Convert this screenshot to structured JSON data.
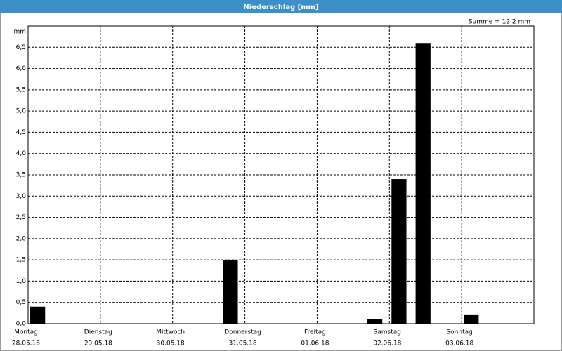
{
  "chart_data": {
    "type": "bar",
    "title": "Niederschlag [mm]",
    "y_label": "mm",
    "annotation": "Summe = 12,2 mm",
    "days": [
      {
        "name": "Montag",
        "date": "28.05.18"
      },
      {
        "name": "Dienstag",
        "date": "29.05.18"
      },
      {
        "name": "Mittwoch",
        "date": "30.05.18"
      },
      {
        "name": "Donnerstag",
        "date": "31.05.18"
      },
      {
        "name": "Freitag",
        "date": "01.06.18"
      },
      {
        "name": "Samstag",
        "date": "02.06.18"
      },
      {
        "name": "Sonntag",
        "date": "03.06.18"
      }
    ],
    "values": [
      0.4,
      0,
      0,
      0,
      0,
      0,
      0,
      0,
      1.5,
      0,
      0,
      0,
      0,
      0,
      0.1,
      3.4,
      6.6,
      0,
      0.2,
      0,
      0
    ],
    "color": "#000000",
    "ylim": [
      0,
      7
    ],
    "yticks": [
      {
        "value": 0,
        "label": "0,0"
      },
      {
        "value": 0.5,
        "label": "0,5"
      },
      {
        "value": 1,
        "label": "1,0"
      },
      {
        "value": 1.5,
        "label": "1,5"
      },
      {
        "value": 2,
        "label": "2,0"
      },
      {
        "value": 2.5,
        "label": "2,5"
      },
      {
        "value": 3,
        "label": "3,0"
      },
      {
        "value": 3.5,
        "label": "3,5"
      },
      {
        "value": 4,
        "label": "4,0"
      },
      {
        "value": 4.5,
        "label": "4,5"
      },
      {
        "value": 5,
        "label": "5,0"
      },
      {
        "value": 5.5,
        "label": "5,5"
      },
      {
        "value": 6,
        "label": "6,0"
      },
      {
        "value": 6.5,
        "label": "6,5"
      }
    ],
    "grid": true
  }
}
